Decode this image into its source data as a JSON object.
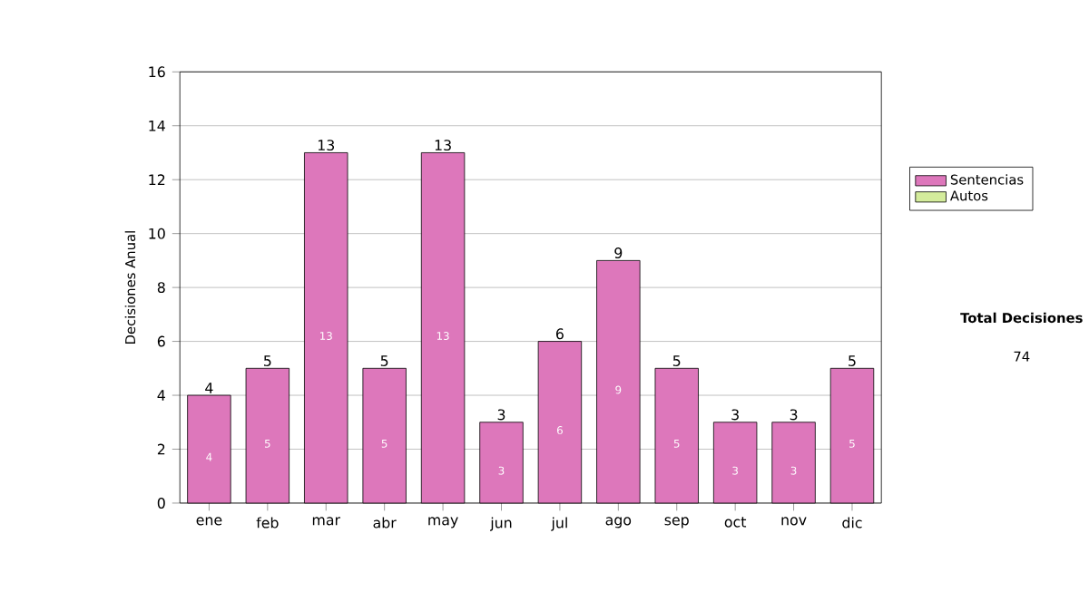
{
  "chart_data": {
    "type": "bar",
    "stacked": true,
    "ylabel": "Decisiones Anual",
    "categories": [
      "ene",
      "feb",
      "mar",
      "abr",
      "may",
      "jun",
      "jul",
      "ago",
      "sep",
      "oct",
      "nov",
      "dic"
    ],
    "series": [
      {
        "name": "Sentencias",
        "color": "#dd77bb",
        "values": [
          4,
          5,
          13,
          5,
          13,
          3,
          6,
          9,
          5,
          3,
          3,
          5
        ],
        "value_labels": [
          "4",
          "5",
          "13",
          "5",
          "13",
          "3",
          "6",
          "9",
          "5",
          "3",
          "3",
          "5"
        ]
      },
      {
        "name": "Autos",
        "color": "#d4ec9c",
        "values": [
          0,
          0,
          0,
          0,
          0,
          0,
          0,
          0,
          0,
          0,
          0,
          0
        ]
      }
    ],
    "totals": [
      "4",
      "5",
      "13",
      "5",
      "13",
      "3",
      "6",
      "9",
      "5",
      "3",
      "3",
      "5"
    ],
    "ylim": [
      0,
      16
    ],
    "yticks": [
      0,
      2,
      4,
      6,
      8,
      10,
      12,
      14,
      16
    ],
    "grid": "y",
    "legend": "right",
    "annotations": [
      "Total Decisiones",
      "74"
    ]
  }
}
